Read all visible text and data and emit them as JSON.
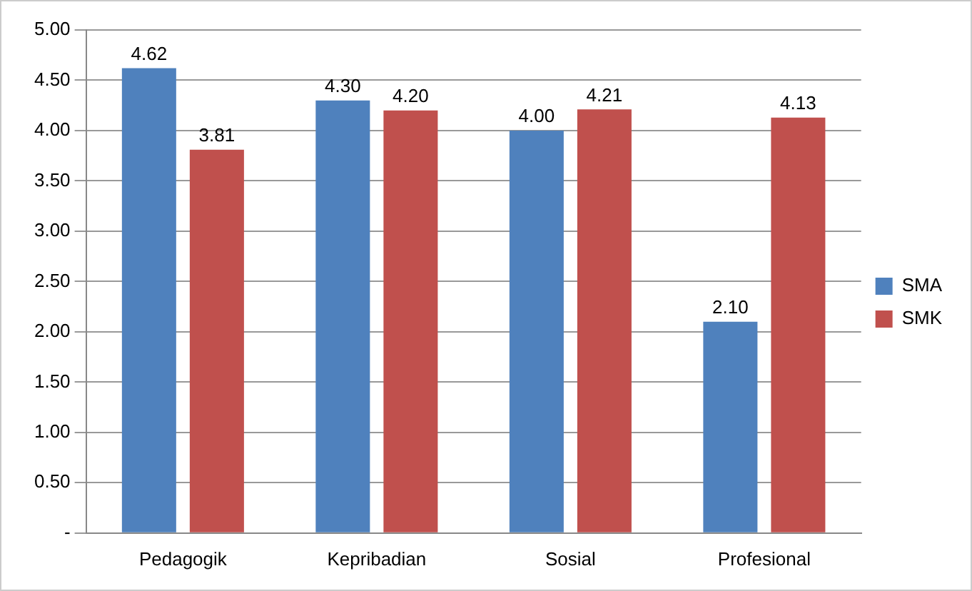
{
  "chart_data": {
    "type": "bar",
    "categories": [
      "Pedagogik",
      "Kepribadian",
      "Sosial",
      "Profesional"
    ],
    "series": [
      {
        "name": "SMA",
        "color": "#4f81bd",
        "values": [
          4.62,
          4.3,
          4.0,
          2.1
        ],
        "value_labels": [
          "4.62",
          "4.30",
          "4.00",
          "2.10"
        ]
      },
      {
        "name": "SMK",
        "color": "#c0504d",
        "values": [
          3.81,
          4.2,
          4.21,
          4.13
        ],
        "value_labels": [
          "3.81",
          "4.20",
          "4.21",
          "4.13"
        ]
      }
    ],
    "ylim": [
      0,
      5
    ],
    "yticks": [
      {
        "value": 0,
        "label": "-"
      },
      {
        "value": 0.5,
        "label": "0.50"
      },
      {
        "value": 1,
        "label": "1.00"
      },
      {
        "value": 1.5,
        "label": "1.50"
      },
      {
        "value": 2,
        "label": "2.00"
      },
      {
        "value": 2.5,
        "label": "2.50"
      },
      {
        "value": 3,
        "label": "3.00"
      },
      {
        "value": 3.5,
        "label": "3.50"
      },
      {
        "value": 4,
        "label": "4.00"
      },
      {
        "value": 4.5,
        "label": "4.50"
      },
      {
        "value": 5,
        "label": "5.00"
      }
    ],
    "grid": "y",
    "legend": "right"
  }
}
